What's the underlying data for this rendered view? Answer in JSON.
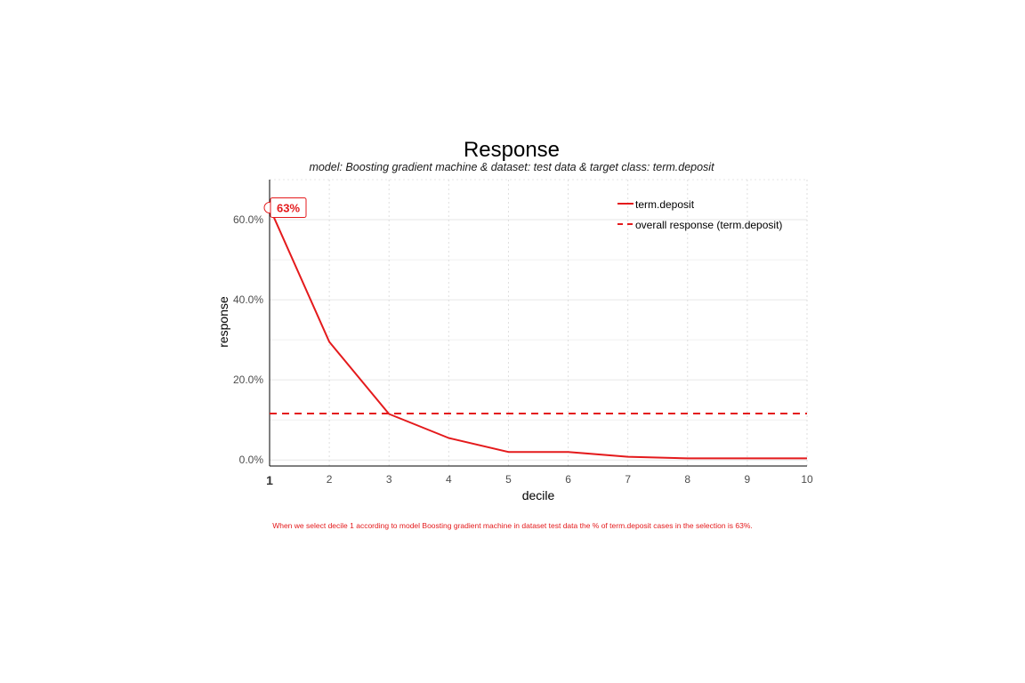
{
  "chart_data": {
    "type": "line",
    "title": "Response",
    "subtitle": "model: Boosting gradient machine  &  dataset: test data  &  target class: term.deposit",
    "xlabel": "decile",
    "ylabel": "response",
    "x": [
      1,
      2,
      3,
      4,
      5,
      6,
      7,
      8,
      9,
      10
    ],
    "x_tick_labels": [
      "1",
      "2",
      "3",
      "4",
      "5",
      "6",
      "7",
      "8",
      "9",
      "10"
    ],
    "highlight_x": 1,
    "xlim": [
      1,
      10
    ],
    "ylim": [
      -0.015,
      0.7
    ],
    "y_ticks": [
      0,
      0.2,
      0.4,
      0.6
    ],
    "y_tick_labels": [
      "0.0%",
      "20.0%",
      "40.0%",
      "60.0%"
    ],
    "grid": true,
    "legend_position": "top-right",
    "series": [
      {
        "name": "term.deposit",
        "style": "solid",
        "color": "#e41a1c",
        "values": [
          0.63,
          0.295,
          0.115,
          0.055,
          0.02,
          0.02,
          0.008,
          0.004,
          0.004,
          0.004
        ]
      },
      {
        "name": "overall response (term.deposit)",
        "style": "dashed",
        "color": "#e41a1c",
        "values": [
          0.116,
          0.116,
          0.116,
          0.116,
          0.116,
          0.116,
          0.116,
          0.116,
          0.116,
          0.116
        ]
      }
    ],
    "annotation": {
      "x": 1,
      "y": 0.63,
      "label": "63%"
    },
    "caption": "When we select decile 1 according to model Boosting gradient machine in dataset test data the % of term.deposit cases in the selection is 63%."
  }
}
